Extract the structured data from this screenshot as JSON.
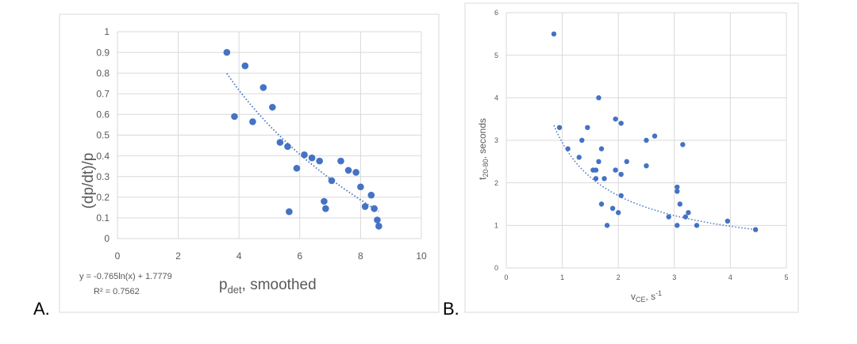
{
  "panel_labels": {
    "a": "A.",
    "b": "B."
  },
  "colors": {
    "marker": "#4472C4",
    "grid": "#d9d9d9",
    "text": "#595959",
    "border": "#d9d9d9"
  },
  "chart_data": [
    {
      "type": "scatter",
      "id": "A",
      "ylabel": "(dp/dt)/p",
      "xlabel_main": "p",
      "xlabel_sub": "det",
      "xlabel_rest": ", smoothed",
      "xlim": [
        0,
        10
      ],
      "ylim": [
        0,
        1
      ],
      "x_ticks": [
        0,
        2,
        4,
        6,
        8,
        10
      ],
      "y_ticks": [
        0,
        0.1,
        0.2,
        0.3,
        0.4,
        0.5,
        0.6,
        0.7,
        0.8,
        0.9,
        1
      ],
      "y_tick_labels": [
        "0",
        "0.1",
        "0.2",
        "0.3",
        "0.4",
        "0.5",
        "0.6",
        "0.7",
        "0.8",
        "0.9",
        "1"
      ],
      "grid": true,
      "trendline": {
        "kind": "logarithmic",
        "a": -0.765,
        "b": 1.7779,
        "x_range": [
          3.6,
          8.6
        ]
      },
      "equation": "y = -0.765ln(x) + 1.7779",
      "r_squared": "R² = 0.7562",
      "points": [
        [
          3.6,
          0.9
        ],
        [
          3.85,
          0.59
        ],
        [
          4.2,
          0.835
        ],
        [
          4.45,
          0.565
        ],
        [
          4.8,
          0.73
        ],
        [
          5.1,
          0.635
        ],
        [
          5.35,
          0.465
        ],
        [
          5.6,
          0.445
        ],
        [
          5.65,
          0.13
        ],
        [
          5.9,
          0.34
        ],
        [
          6.15,
          0.405
        ],
        [
          6.4,
          0.39
        ],
        [
          6.65,
          0.375
        ],
        [
          6.8,
          0.18
        ],
        [
          6.85,
          0.145
        ],
        [
          7.05,
          0.28
        ],
        [
          7.35,
          0.375
        ],
        [
          7.6,
          0.33
        ],
        [
          7.85,
          0.32
        ],
        [
          8.0,
          0.25
        ],
        [
          8.15,
          0.155
        ],
        [
          8.35,
          0.21
        ],
        [
          8.45,
          0.145
        ],
        [
          8.55,
          0.09
        ],
        [
          8.6,
          0.06
        ]
      ]
    },
    {
      "type": "scatter",
      "id": "B",
      "ylabel_main": "t",
      "ylabel_sub": "20-80",
      "ylabel_rest": ", seconds",
      "xlabel_main": "v",
      "xlabel_sub": "CE",
      "xlabel_rest": ", s",
      "xlabel_sup": "-1",
      "xlim": [
        0,
        5
      ],
      "ylim": [
        0,
        6
      ],
      "x_ticks": [
        0,
        1,
        2,
        3,
        4,
        5
      ],
      "y_ticks": [
        0,
        1,
        2,
        3,
        4,
        5,
        6
      ],
      "grid": true,
      "trendline": {
        "kind": "power",
        "x_range": [
          0.85,
          4.45
        ],
        "y_start": 3.35,
        "y_end": 0.9
      },
      "points": [
        [
          0.85,
          5.5
        ],
        [
          0.95,
          3.3
        ],
        [
          1.1,
          2.8
        ],
        [
          1.3,
          2.6
        ],
        [
          1.35,
          3.0
        ],
        [
          1.45,
          3.3
        ],
        [
          1.55,
          2.3
        ],
        [
          1.6,
          2.3
        ],
        [
          1.6,
          2.1
        ],
        [
          1.65,
          4.0
        ],
        [
          1.65,
          2.5
        ],
        [
          1.7,
          1.5
        ],
        [
          1.7,
          2.8
        ],
        [
          1.75,
          2.1
        ],
        [
          1.8,
          1.0
        ],
        [
          1.9,
          1.4
        ],
        [
          1.95,
          3.5
        ],
        [
          1.95,
          2.3
        ],
        [
          2.0,
          1.3
        ],
        [
          2.05,
          3.4
        ],
        [
          2.05,
          2.2
        ],
        [
          2.05,
          1.7
        ],
        [
          2.15,
          2.5
        ],
        [
          2.5,
          3.0
        ],
        [
          2.5,
          2.4
        ],
        [
          2.65,
          3.1
        ],
        [
          2.9,
          1.2
        ],
        [
          3.05,
          1.0
        ],
        [
          3.05,
          1.9
        ],
        [
          3.05,
          1.8
        ],
        [
          3.1,
          1.5
        ],
        [
          3.15,
          2.9
        ],
        [
          3.2,
          1.2
        ],
        [
          3.25,
          1.3
        ],
        [
          3.4,
          1.0
        ],
        [
          3.95,
          1.1
        ],
        [
          4.45,
          0.9
        ]
      ]
    }
  ]
}
